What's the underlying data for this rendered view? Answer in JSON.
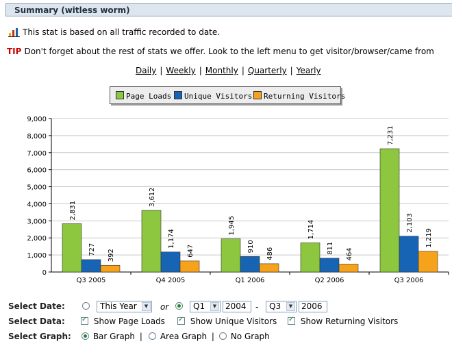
{
  "header": {
    "title": "Summary (witless worm)"
  },
  "info": {
    "stat_note": "This stat is based on all traffic recorded to date.",
    "tip_label": "TIP",
    "tip_text": "Don't forget about the rest of stats we offer. Look to the left menu to get visitor/browser/came from"
  },
  "periods": {
    "daily": "Daily",
    "weekly": "Weekly",
    "monthly": "Monthly",
    "quarterly": "Quarterly",
    "yearly": "Yearly",
    "separator": "|"
  },
  "legend": {
    "page_loads": "Page Loads",
    "unique_visitors": "Unique Visitors",
    "returning_visitors": "Returning Visitors"
  },
  "colors": {
    "page_loads": "#8dc63f",
    "unique_visitors": "#1864b4",
    "returning_visitors": "#f7a21b"
  },
  "chart_data": {
    "type": "bar",
    "categories": [
      "Q3 2005",
      "Q4 2005",
      "Q1 2006",
      "Q2 2006",
      "Q3 2006"
    ],
    "series": [
      {
        "name": "Page Loads",
        "values": [
          2831,
          3612,
          1945,
          1714,
          7231
        ]
      },
      {
        "name": "Unique Visitors",
        "values": [
          727,
          1174,
          910,
          811,
          2103
        ]
      },
      {
        "name": "Returning Visitors",
        "values": [
          392,
          647,
          486,
          464,
          1219
        ]
      }
    ],
    "ylim": [
      0,
      9000
    ],
    "yticks": [
      "0",
      "1,000",
      "2,000",
      "3,000",
      "4,000",
      "5,000",
      "6,000",
      "7,000",
      "8,000",
      "9,000"
    ],
    "grid": true,
    "legend_position": "top"
  },
  "controls": {
    "select_date_label": "Select Date:",
    "this_year": "This Year",
    "or": "or",
    "start_quarter": "Q1",
    "start_year": "2004",
    "dash": "-",
    "end_quarter": "Q3",
    "end_year": "2006",
    "select_data_label": "Select Data:",
    "show_page_loads": "Show Page Loads",
    "show_unique_visitors": "Show Unique Visitors",
    "show_returning_visitors": "Show Returning Visitors",
    "select_graph_label": "Select Graph:",
    "bar_graph": "Bar Graph",
    "area_graph": "Area Graph",
    "no_graph": "No Graph",
    "pipe": "|"
  }
}
